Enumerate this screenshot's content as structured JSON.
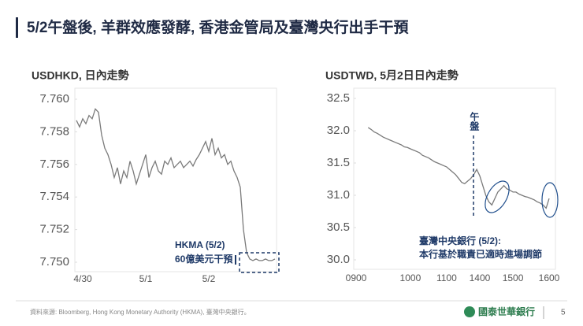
{
  "header": {
    "title": "5/2午盤後, 羊群效應發酵, 香港金管局及臺灣央行出手干預"
  },
  "chart_data": [
    {
      "type": "line",
      "title": "USDHKD, 日內走勢",
      "categories": [
        null,
        null,
        "4/30",
        null,
        null,
        null,
        null,
        null,
        null,
        null,
        null,
        null,
        null,
        null,
        null,
        null,
        null,
        null,
        null,
        null,
        null,
        null,
        "5/1",
        null,
        null,
        null,
        null,
        null,
        null,
        null,
        null,
        null,
        null,
        null,
        null,
        null,
        null,
        null,
        null,
        null,
        null,
        null,
        "5/2",
        null,
        null,
        null,
        null,
        null,
        null,
        null,
        null,
        null,
        null,
        null,
        null,
        null,
        null,
        null,
        null,
        null,
        null,
        null,
        null,
        null
      ],
      "series": [
        {
          "color": "#7a7a7a",
          "values": [
            7.7587,
            7.7583,
            7.7588,
            7.7585,
            7.759,
            7.7588,
            7.7594,
            7.7592,
            7.7578,
            7.757,
            7.7566,
            7.756,
            7.7552,
            7.7558,
            7.7548,
            7.7556,
            7.7552,
            7.7562,
            7.7556,
            7.7548,
            7.7554,
            7.756,
            7.7566,
            7.7552,
            7.7558,
            7.7562,
            7.7556,
            7.7554,
            7.7562,
            7.756,
            7.7564,
            7.7558,
            7.756,
            7.7562,
            7.7558,
            7.756,
            7.7562,
            7.7559,
            7.7563,
            7.7566,
            7.757,
            7.7574,
            7.7568,
            7.7576,
            7.7566,
            7.757,
            7.7564,
            7.7566,
            7.756,
            7.7562,
            7.7556,
            7.7552,
            7.7546,
            7.752,
            7.7506,
            7.7502,
            7.7501,
            7.7502,
            7.7501,
            7.7501,
            7.7502,
            7.7501,
            7.7501,
            7.7502
          ]
        }
      ],
      "ylim": [
        7.75,
        7.76
      ],
      "yticks": [
        {
          "value": 7.75,
          "label": "7.750"
        },
        7.752,
        7.754,
        7.756,
        7.758,
        {
          "value": 7.76,
          "label": "7.760"
        }
      ],
      "annotations": [
        "HKMA (5/2)",
        "60億美元干預"
      ]
    },
    {
      "type": "line",
      "title": "USDTWD, 5月2日日內走勢",
      "categories": [
        "0900",
        null,
        null,
        null,
        null,
        null,
        null,
        null,
        null,
        null,
        null,
        null,
        null,
        null,
        null,
        null,
        null,
        null,
        "1000",
        null,
        null,
        null,
        null,
        null,
        null,
        null,
        null,
        null,
        null,
        null,
        "1100",
        null,
        null,
        null,
        null,
        null,
        null,
        null,
        null,
        null,
        null,
        "1400",
        null,
        null,
        null,
        null,
        null,
        null,
        null,
        null,
        null,
        null,
        "1500",
        null,
        null,
        null,
        null,
        null,
        null,
        null,
        null,
        null,
        null,
        null,
        "1600"
      ],
      "series": [
        {
          "color": "#7a7a7a",
          "values": [
            null,
            null,
            null,
            null,
            32.05,
            32.02,
            31.98,
            31.96,
            31.93,
            31.9,
            31.88,
            31.86,
            31.84,
            31.82,
            31.8,
            31.78,
            31.75,
            31.74,
            31.72,
            31.7,
            31.68,
            31.66,
            31.62,
            31.6,
            31.58,
            31.55,
            31.52,
            31.5,
            31.48,
            31.46,
            31.44,
            31.4,
            31.36,
            31.32,
            31.26,
            31.2,
            31.18,
            31.22,
            31.26,
            31.32,
            31.4,
            31.3,
            31.15,
            31.0,
            30.9,
            30.85,
            30.95,
            31.05,
            31.1,
            31.15,
            31.1,
            31.08,
            31.05,
            31.05,
            31.02,
            31.0,
            30.98,
            30.97,
            30.95,
            30.93,
            30.9,
            30.88,
            30.85,
            30.8,
            30.95
          ]
        }
      ],
      "ylim": [
        30.0,
        32.5
      ],
      "yticks": [
        {
          "value": 30.0,
          "label": "30.0"
        },
        30.5,
        {
          "value": 31.0,
          "label": "31.0"
        },
        31.5,
        {
          "value": 32.0,
          "label": "32.0"
        },
        32.5
      ],
      "annotations": [
        "午盤",
        "臺灣中央銀行 (5/2):",
        "本行基於職責已適時進場調節"
      ]
    }
  ],
  "footer": {
    "source": "資料來源: Bloomberg, Hong Kong Monetary Authority (HKMA), 臺灣中央銀行。",
    "logo": "國泰世華銀行",
    "page": "5"
  }
}
